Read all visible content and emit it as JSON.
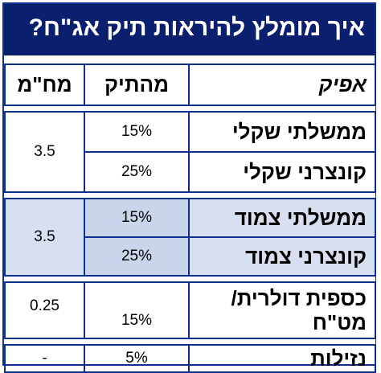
{
  "title": "איך מומלץ להיראות תיק אג\"ח?",
  "headers": {
    "category": "אפיק",
    "weight": "מהתיק",
    "duration": "מח\"מ"
  },
  "groups": [
    {
      "duration": "3.5",
      "rows": [
        {
          "name": "ממשלתי שקלי",
          "weight": "15%"
        },
        {
          "name": "קונצרני שקלי",
          "weight": "25%"
        }
      ]
    },
    {
      "duration": "3.5",
      "rows": [
        {
          "name": "ממשלתי צמוד",
          "weight": "15%"
        },
        {
          "name": "קונצרני צמוד",
          "weight": "25%"
        }
      ]
    },
    {
      "duration": "0.25",
      "rows": [
        {
          "name": "כספית דולרית/ מט\"ח",
          "weight": "15%"
        }
      ]
    },
    {
      "duration": "-",
      "rows": [
        {
          "name": "נזילות",
          "weight": "5%"
        }
      ]
    }
  ],
  "colors": {
    "header_bg": "#0a1f6e",
    "border": "#0d2f8e",
    "shaded_row": "#d6e0f0"
  }
}
